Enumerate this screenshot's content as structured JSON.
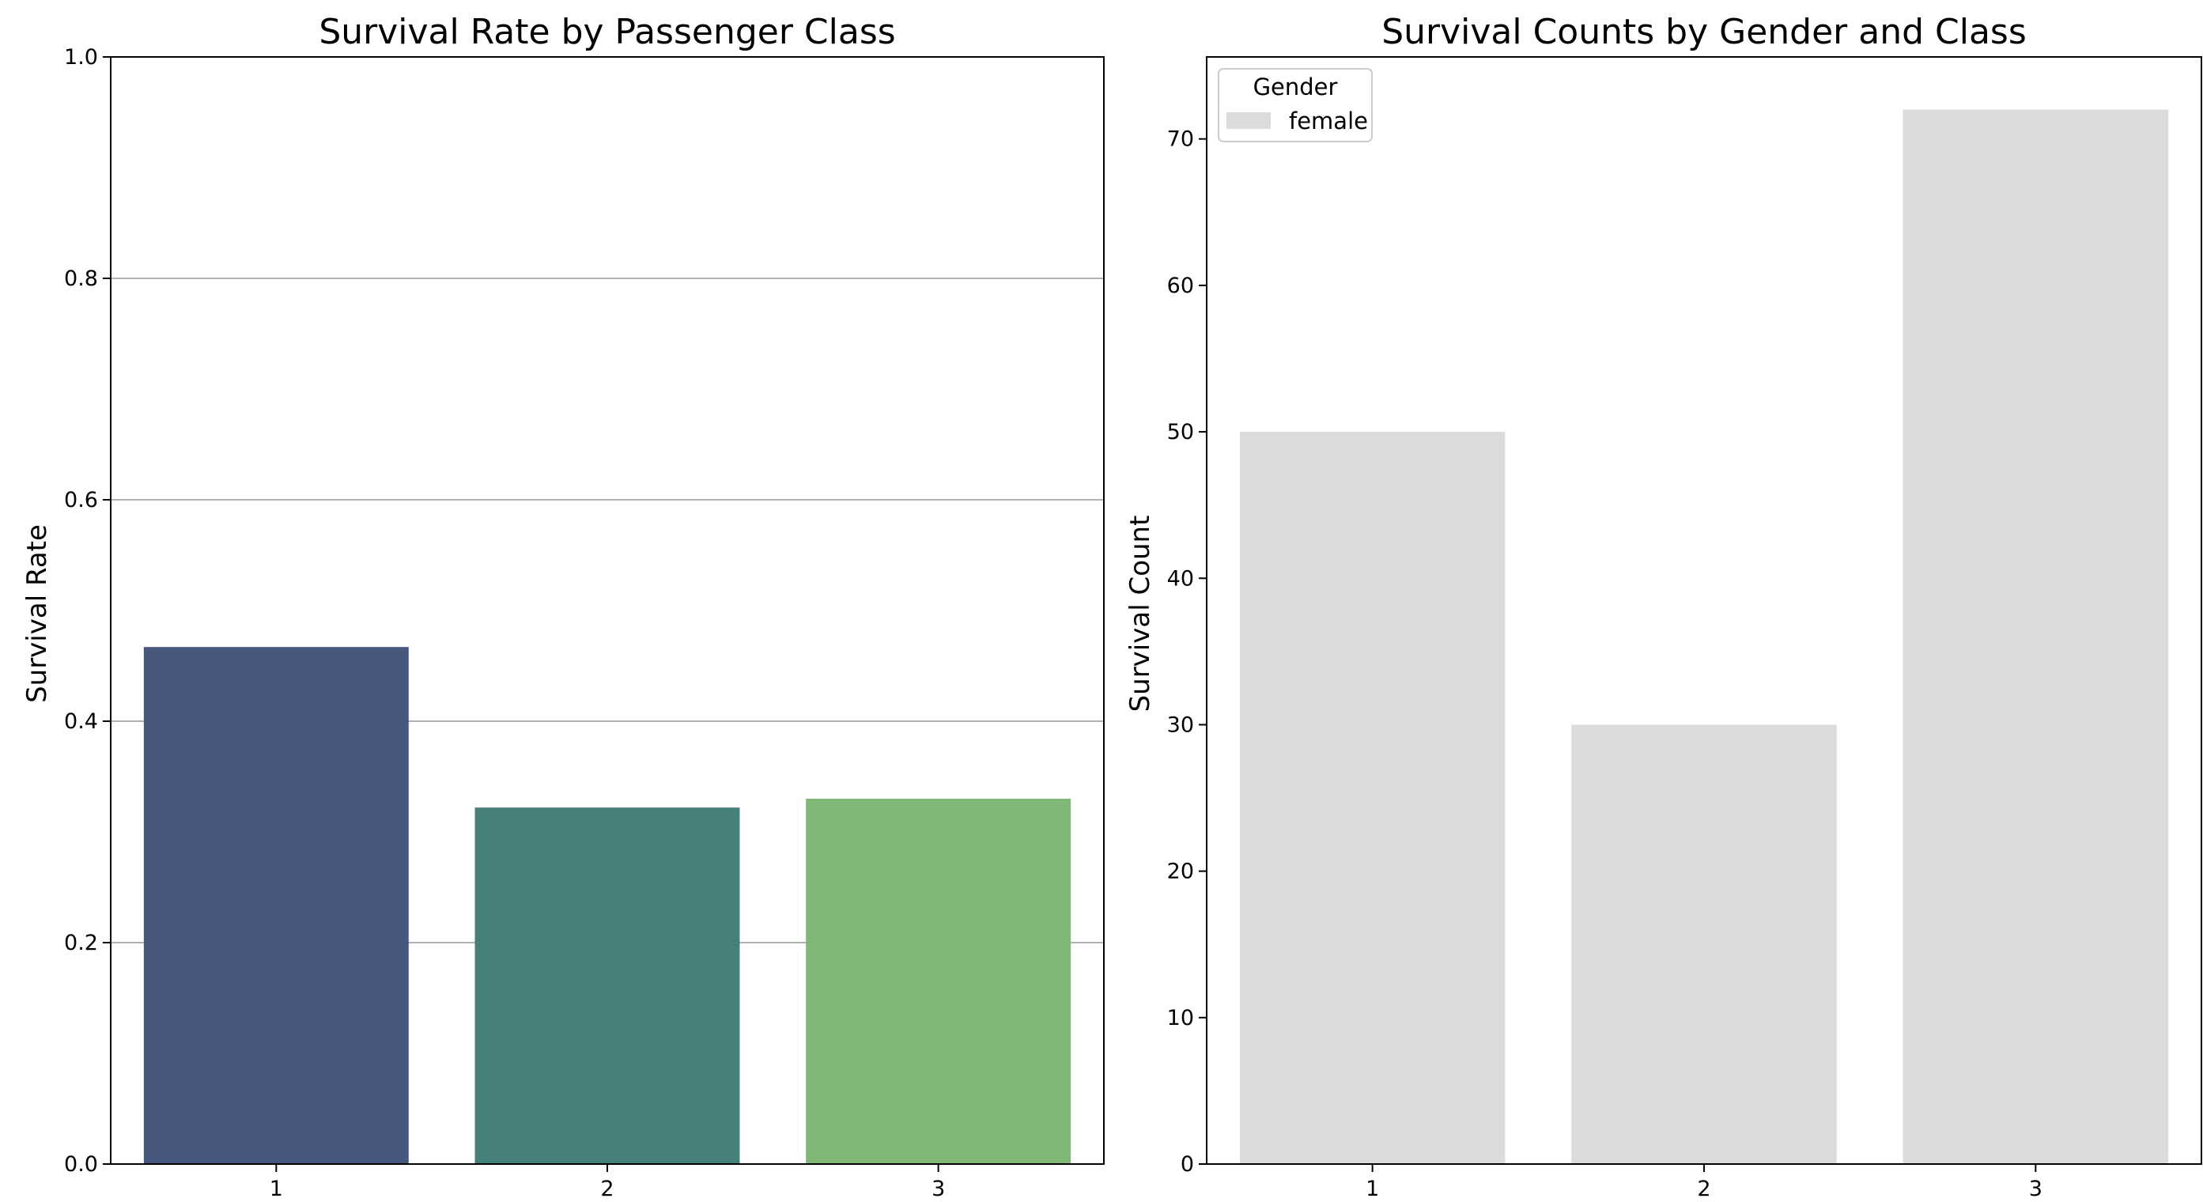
{
  "chart_data": [
    {
      "type": "bar",
      "title": "Survival Rate by Passenger Class",
      "xlabel": "",
      "ylabel": "Survival Rate",
      "categories": [
        "1",
        "2",
        "3"
      ],
      "values": [
        0.467,
        0.322,
        0.33
      ],
      "colors": [
        "#48577d",
        "#477f7b",
        "#7fb875"
      ],
      "ylim": [
        0,
        1.0
      ],
      "yticks": [
        "0.0",
        "0.2",
        "0.4",
        "0.6",
        "0.8",
        "1.0"
      ],
      "ytick_values": [
        0,
        0.2,
        0.4,
        0.6,
        0.8,
        1.0
      ],
      "grid": "y"
    },
    {
      "type": "bar",
      "title": "Survival Counts by Gender and Class",
      "xlabel": "",
      "ylabel": "Survival Count",
      "categories": [
        "1",
        "2",
        "3"
      ],
      "series": [
        {
          "name": "female",
          "values": [
            50,
            30,
            72
          ],
          "color": "#dbdbdb"
        }
      ],
      "ylim": [
        0,
        75.6
      ],
      "yticks": [
        "0",
        "10",
        "20",
        "30",
        "40",
        "50",
        "60",
        "70"
      ],
      "ytick_values": [
        0,
        10,
        20,
        30,
        40,
        50,
        60,
        70
      ],
      "legend": {
        "title": "Gender",
        "position": "top-left"
      },
      "grid": "none"
    }
  ]
}
